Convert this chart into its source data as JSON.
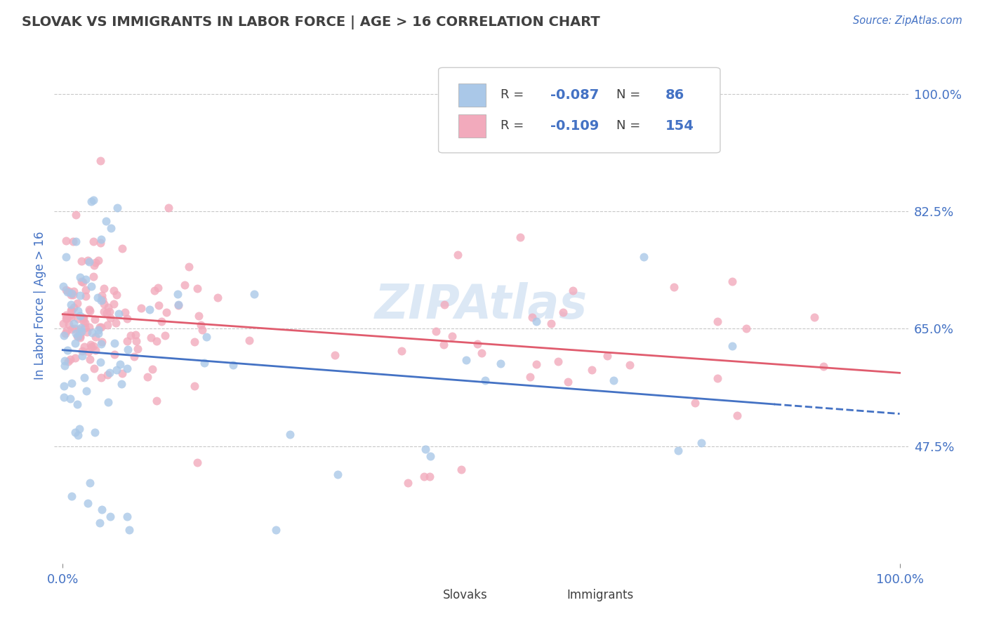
{
  "title": "SLOVAK VS IMMIGRANTS IN LABOR FORCE | AGE > 16 CORRELATION CHART",
  "source_text": "Source: ZipAtlas.com",
  "ylabel": "In Labor Force | Age > 16",
  "r_slovak": -0.087,
  "n_slovak": 86,
  "r_immigrant": -0.109,
  "n_immigrant": 154,
  "slovak_color": "#aac8e8",
  "immigrant_color": "#f2aabc",
  "slovak_line_color": "#4472c4",
  "immigrant_line_color": "#e05c6e",
  "background_color": "#ffffff",
  "grid_color": "#c8c8c8",
  "title_color": "#404040",
  "axis_label_color": "#4472c4",
  "legend_text_color": "#404040",
  "watermark_color": "#dce8f5",
  "ytick_vals": [
    0.475,
    0.65,
    0.825,
    1.0
  ],
  "ytick_labels": [
    "47.5%",
    "65.0%",
    "82.5%",
    "100.0%"
  ],
  "ymin": 0.3,
  "ymax": 1.07,
  "xmin": -0.01,
  "xmax": 1.01
}
